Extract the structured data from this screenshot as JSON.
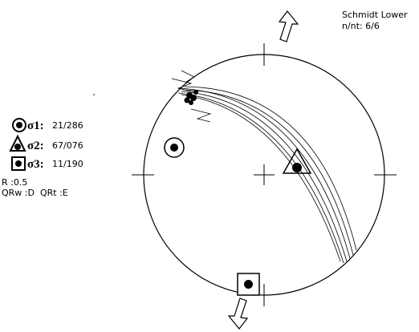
{
  "header": {
    "title": "Schmidt Lower",
    "count": "n/nt: 6/6"
  },
  "legend": [
    {
      "label": "σ1:",
      "value": "21/286"
    },
    {
      "label": "σ2:",
      "value": "67/076"
    },
    {
      "label": "σ3:",
      "value": "11/190"
    }
  ],
  "ratio": "R :0.5",
  "quality": "QRw :D  QRt :E"
}
